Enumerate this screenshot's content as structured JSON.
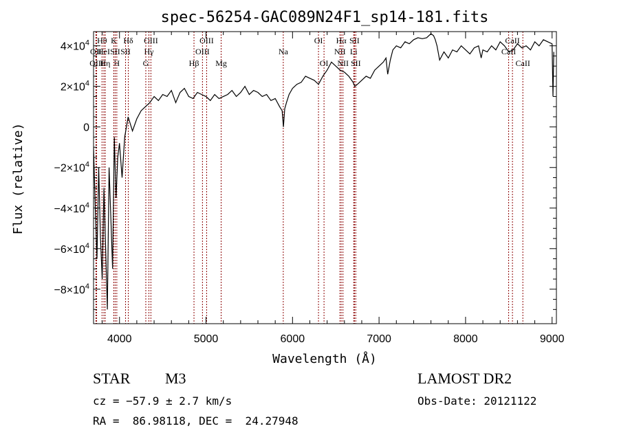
{
  "chart_data": {
    "type": "line",
    "title": "spec-56254-GAC089N24F1_sp14-181.fits",
    "xlabel": "Wavelength (Å)",
    "ylabel": "Flux (relative)",
    "xlim": [
      3700,
      9050
    ],
    "ylim": [
      -97000,
      47000
    ],
    "x_ticks": [
      4000,
      5000,
      6000,
      7000,
      8000,
      9000
    ],
    "x_tick_labels": [
      "4000",
      "5000",
      "6000",
      "7000",
      "8000",
      "9000"
    ],
    "y_ticks": [
      {
        "value": 40000,
        "mantissa": "4",
        "sign": ""
      },
      {
        "value": 20000,
        "mantissa": "2",
        "sign": ""
      },
      {
        "value": 0,
        "mantissa": "0",
        "sign": ""
      },
      {
        "value": -20000,
        "mantissa": "2",
        "sign": "−"
      },
      {
        "value": -40000,
        "mantissa": "4",
        "sign": "−"
      },
      {
        "value": -60000,
        "mantissa": "6",
        "sign": "−"
      },
      {
        "value": -80000,
        "mantissa": "8",
        "sign": "−"
      }
    ],
    "y_tick_suffix": "×10",
    "y_tick_exponent": "4",
    "grid": false,
    "line_color": "#000000",
    "marker_color": "#8b0000",
    "spectrum": {
      "x": [
        3700,
        3720,
        3740,
        3760,
        3780,
        3800,
        3820,
        3840,
        3860,
        3880,
        3900,
        3920,
        3940,
        3960,
        3980,
        4000,
        4030,
        4060,
        4100,
        4150,
        4200,
        4250,
        4300,
        4350,
        4400,
        4450,
        4500,
        4550,
        4600,
        4650,
        4700,
        4750,
        4800,
        4850,
        4900,
        4950,
        5000,
        5050,
        5100,
        5150,
        5200,
        5250,
        5300,
        5350,
        5400,
        5450,
        5500,
        5550,
        5600,
        5650,
        5700,
        5750,
        5800,
        5850,
        5880,
        5895,
        5910,
        5930,
        5960,
        6000,
        6050,
        6100,
        6150,
        6200,
        6250,
        6300,
        6350,
        6400,
        6450,
        6500,
        6550,
        6600,
        6650,
        6700,
        6720,
        6750,
        6800,
        6850,
        6900,
        6950,
        7000,
        7050,
        7080,
        7100,
        7130,
        7160,
        7200,
        7250,
        7300,
        7350,
        7400,
        7450,
        7500,
        7550,
        7600,
        7630,
        7650,
        7670,
        7700,
        7750,
        7800,
        7850,
        7900,
        7950,
        8000,
        8050,
        8100,
        8150,
        8180,
        8200,
        8250,
        8300,
        8350,
        8400,
        8450,
        8500,
        8550,
        8600,
        8650,
        8700,
        8750,
        8800,
        8850,
        8900,
        8950,
        9000,
        9010,
        9020
      ],
      "y": [
        -10000,
        -40000,
        -65000,
        -20000,
        -55000,
        -75000,
        -30000,
        -60000,
        -90000,
        -20000,
        -45000,
        -70000,
        -5000,
        -35000,
        -15000,
        -8000,
        -25000,
        -5000,
        5000,
        -2000,
        4000,
        8000,
        10000,
        12000,
        15000,
        13000,
        16000,
        15000,
        18000,
        12000,
        17000,
        19000,
        15000,
        14000,
        17000,
        16000,
        15000,
        13000,
        16000,
        14000,
        15000,
        16000,
        18000,
        15000,
        17000,
        20000,
        16000,
        18000,
        17000,
        15000,
        16000,
        13000,
        14000,
        10000,
        8000,
        0,
        9000,
        12000,
        16000,
        19000,
        21000,
        22000,
        25000,
        24000,
        23000,
        21000,
        25000,
        28000,
        32000,
        30000,
        28000,
        27000,
        25000,
        22000,
        20000,
        21000,
        23000,
        25000,
        24000,
        28000,
        30000,
        32000,
        34000,
        26000,
        33000,
        38000,
        40000,
        39000,
        42000,
        41000,
        43000,
        44000,
        43500,
        44000,
        46000,
        45000,
        43000,
        40000,
        33000,
        37000,
        34000,
        38000,
        37000,
        40000,
        38000,
        36000,
        39000,
        40000,
        34000,
        38000,
        37000,
        40000,
        38000,
        42000,
        40000,
        37000,
        38000,
        41000,
        39000,
        40000,
        38000,
        42000,
        40000,
        43000,
        42000,
        41000,
        15000,
        37000
      ]
    },
    "line_markers": [
      {
        "label": "Hθ",
        "x": 3798,
        "row": 1
      },
      {
        "label": "OII",
        "x": 3727,
        "row": 2
      },
      {
        "label": "OIII",
        "x": 3736,
        "row": 3
      },
      {
        "label": "HeI",
        "x": 3819,
        "row": 2
      },
      {
        "label": "Hη",
        "x": 3835,
        "row": 3
      },
      {
        "label": "K",
        "x": 3934,
        "row": 1
      },
      {
        "label": "H",
        "x": 3969,
        "row": 3
      },
      {
        "label": "SII",
        "x": 3950,
        "row": 2
      },
      {
        "label": "Hδ",
        "x": 4102,
        "row": 1
      },
      {
        "label": "SII",
        "x": 4070,
        "row": 2
      },
      {
        "label": "OIII",
        "x": 4363,
        "row": 1
      },
      {
        "label": "Hγ",
        "x": 4340,
        "row": 2
      },
      {
        "label": "G",
        "x": 4304,
        "row": 3
      },
      {
        "label": "Hβ",
        "x": 4861,
        "row": 3
      },
      {
        "label": "OIII",
        "x": 4959,
        "row": 2
      },
      {
        "label": "OIII",
        "x": 5007,
        "row": 1
      },
      {
        "label": "Mg",
        "x": 5175,
        "row": 3
      },
      {
        "label": "Na",
        "x": 5893,
        "row": 2
      },
      {
        "label": "OI",
        "x": 6300,
        "row": 1
      },
      {
        "label": "OI",
        "x": 6364,
        "row": 3
      },
      {
        "label": "NII",
        "x": 6548,
        "row": 2
      },
      {
        "label": "Hα",
        "x": 6563,
        "row": 1
      },
      {
        "label": "NII",
        "x": 6583,
        "row": 3
      },
      {
        "label": "Li",
        "x": 6707,
        "row": 2
      },
      {
        "label": "SII",
        "x": 6716,
        "row": 1
      },
      {
        "label": "SII",
        "x": 6731,
        "row": 3
      },
      {
        "label": "CaII",
        "x": 8498,
        "row": 2
      },
      {
        "label": "CaII",
        "x": 8542,
        "row": 1
      },
      {
        "label": "CaII",
        "x": 8662,
        "row": 3
      }
    ]
  },
  "footer": {
    "object_class": "STAR",
    "subclass": "M3",
    "cz": "cz = −57.9 ± 2.7 km/s",
    "coords": "RA =  86.98118, DEC =  24.27948",
    "survey": "LAMOST DR2",
    "obs_date": "Obs-Date: 20121122"
  }
}
